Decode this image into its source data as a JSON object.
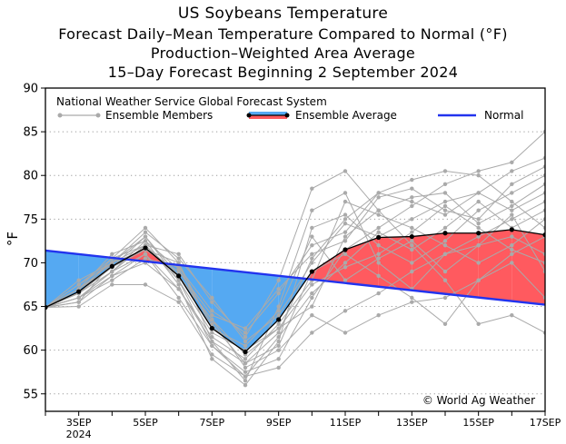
{
  "chart_data": {
    "type": "area",
    "title": "US Soybeans Temperature",
    "subtitles": [
      "Forecast Daily–Mean Temperature Compared to Normal (°F)",
      "Production–Weighted Area Average",
      "15–Day Forecast Beginning 2 September 2024"
    ],
    "ylabel": "°F",
    "xlabel": "",
    "ylim": [
      53,
      90
    ],
    "xlim": [
      2,
      17
    ],
    "yticks": [
      55,
      60,
      65,
      70,
      75,
      80,
      85,
      90
    ],
    "xticks": [
      {
        "x": 3,
        "label": "3SEP",
        "sub": "2024"
      },
      {
        "x": 5,
        "label": "5SEP"
      },
      {
        "x": 7,
        "label": "7SEP"
      },
      {
        "x": 9,
        "label": "9SEP"
      },
      {
        "x": 11,
        "label": "11SEP"
      },
      {
        "x": 13,
        "label": "13SEP"
      },
      {
        "x": 15,
        "label": "15SEP"
      },
      {
        "x": 17,
        "label": "17SEP"
      }
    ],
    "grid": "horizontal-dotted",
    "legend": {
      "source": "National Weather Service Global Forecast System",
      "members": "Ensemble Members",
      "average": "Ensemble Average",
      "normal": "Normal",
      "placement": "top"
    },
    "copyright": "© World Ag Weather",
    "colors": {
      "below_normal": "#55a9f2",
      "above_normal": "#ff5a5f",
      "normal_line": "#2233ee",
      "member": "#aaaaaa",
      "average": "#000000"
    },
    "normal": {
      "x": [
        2,
        17
      ],
      "y": [
        71.4,
        65.2
      ]
    },
    "ensemble_average": {
      "x": [
        2,
        3,
        4,
        5,
        6,
        7,
        8,
        9,
        10,
        11,
        12,
        13,
        14,
        15,
        16,
        17
      ],
      "y": [
        64.9,
        66.7,
        69.6,
        71.7,
        68.5,
        62.5,
        59.8,
        63.5,
        69.0,
        71.5,
        72.9,
        73.0,
        73.4,
        73.4,
        73.8,
        73.2
      ]
    },
    "ensemble_members_x": [
      2,
      3,
      4,
      5,
      6,
      7,
      8,
      9,
      10,
      11,
      12,
      13,
      14,
      15,
      16,
      17
    ],
    "ensemble_members": [
      [
        64.9,
        66.0,
        69.0,
        72.5,
        69.3,
        63.0,
        58.5,
        62.0,
        70.5,
        75.0,
        78.0,
        77.0,
        75.5,
        78.0,
        80.5,
        82.0
      ],
      [
        64.9,
        67.5,
        70.5,
        74.0,
        70.0,
        61.0,
        56.5,
        65.0,
        76.0,
        78.0,
        70.0,
        67.0,
        71.0,
        73.0,
        75.0,
        77.0
      ],
      [
        64.9,
        65.5,
        68.5,
        71.0,
        66.0,
        60.5,
        57.5,
        59.0,
        66.0,
        71.5,
        74.0,
        76.5,
        79.0,
        80.5,
        81.5,
        85.0
      ],
      [
        64.9,
        68.0,
        70.0,
        72.0,
        71.0,
        65.5,
        61.5,
        68.0,
        78.5,
        80.5,
        76.0,
        72.0,
        68.0,
        63.0,
        64.0,
        62.0
      ],
      [
        64.9,
        66.5,
        69.5,
        73.0,
        68.0,
        62.0,
        60.0,
        62.5,
        67.5,
        69.5,
        71.0,
        73.5,
        76.5,
        74.0,
        71.5,
        70.0
      ],
      [
        64.9,
        67.0,
        71.0,
        72.5,
        67.5,
        59.0,
        56.0,
        61.0,
        74.0,
        75.5,
        72.0,
        70.0,
        72.5,
        76.0,
        78.0,
        80.0
      ],
      [
        64.9,
        66.0,
        68.0,
        70.5,
        69.5,
        64.5,
        62.0,
        66.5,
        72.0,
        73.5,
        78.0,
        79.5,
        80.5,
        80.0,
        77.0,
        74.0
      ],
      [
        64.9,
        65.0,
        67.5,
        67.5,
        65.5,
        59.5,
        57.0,
        58.0,
        62.0,
        64.5,
        66.5,
        69.0,
        71.0,
        72.0,
        73.0,
        71.0
      ],
      [
        64.9,
        67.5,
        70.0,
        73.5,
        70.5,
        66.0,
        61.0,
        64.0,
        70.0,
        74.5,
        73.0,
        75.0,
        77.0,
        78.0,
        76.0,
        78.0
      ],
      [
        64.9,
        66.5,
        70.5,
        72.0,
        68.5,
        63.5,
        58.0,
        60.0,
        64.0,
        62.0,
        64.0,
        65.5,
        66.0,
        68.0,
        71.0,
        73.0
      ],
      [
        64.9,
        66.0,
        69.0,
        71.0,
        67.0,
        61.5,
        59.0,
        63.0,
        68.0,
        77.0,
        75.5,
        74.0,
        72.0,
        70.0,
        72.0,
        75.0
      ],
      [
        64.9,
        67.0,
        70.0,
        71.5,
        69.0,
        64.0,
        62.5,
        67.0,
        71.0,
        72.5,
        77.5,
        78.5,
        76.0,
        75.0,
        79.0,
        81.0
      ],
      [
        64.9,
        66.5,
        69.0,
        72.0,
        68.0,
        60.5,
        57.0,
        61.5,
        66.5,
        70.0,
        73.5,
        71.5,
        74.0,
        77.0,
        74.0,
        76.0
      ],
      [
        64.9,
        67.0,
        69.5,
        71.5,
        70.0,
        62.5,
        60.5,
        64.5,
        73.0,
        68.0,
        70.5,
        72.5,
        69.0,
        72.0,
        75.5,
        69.0
      ],
      [
        64.9,
        65.5,
        70.0,
        73.0,
        68.5,
        63.5,
        59.5,
        62.5,
        65.0,
        73.0,
        76.0,
        77.5,
        78.0,
        74.5,
        76.5,
        79.0
      ],
      [
        64.9,
        66.0,
        68.5,
        70.0,
        67.0,
        61.0,
        58.5,
        60.5,
        69.0,
        71.0,
        68.5,
        66.0,
        63.0,
        68.0,
        70.0,
        66.0
      ]
    ]
  }
}
